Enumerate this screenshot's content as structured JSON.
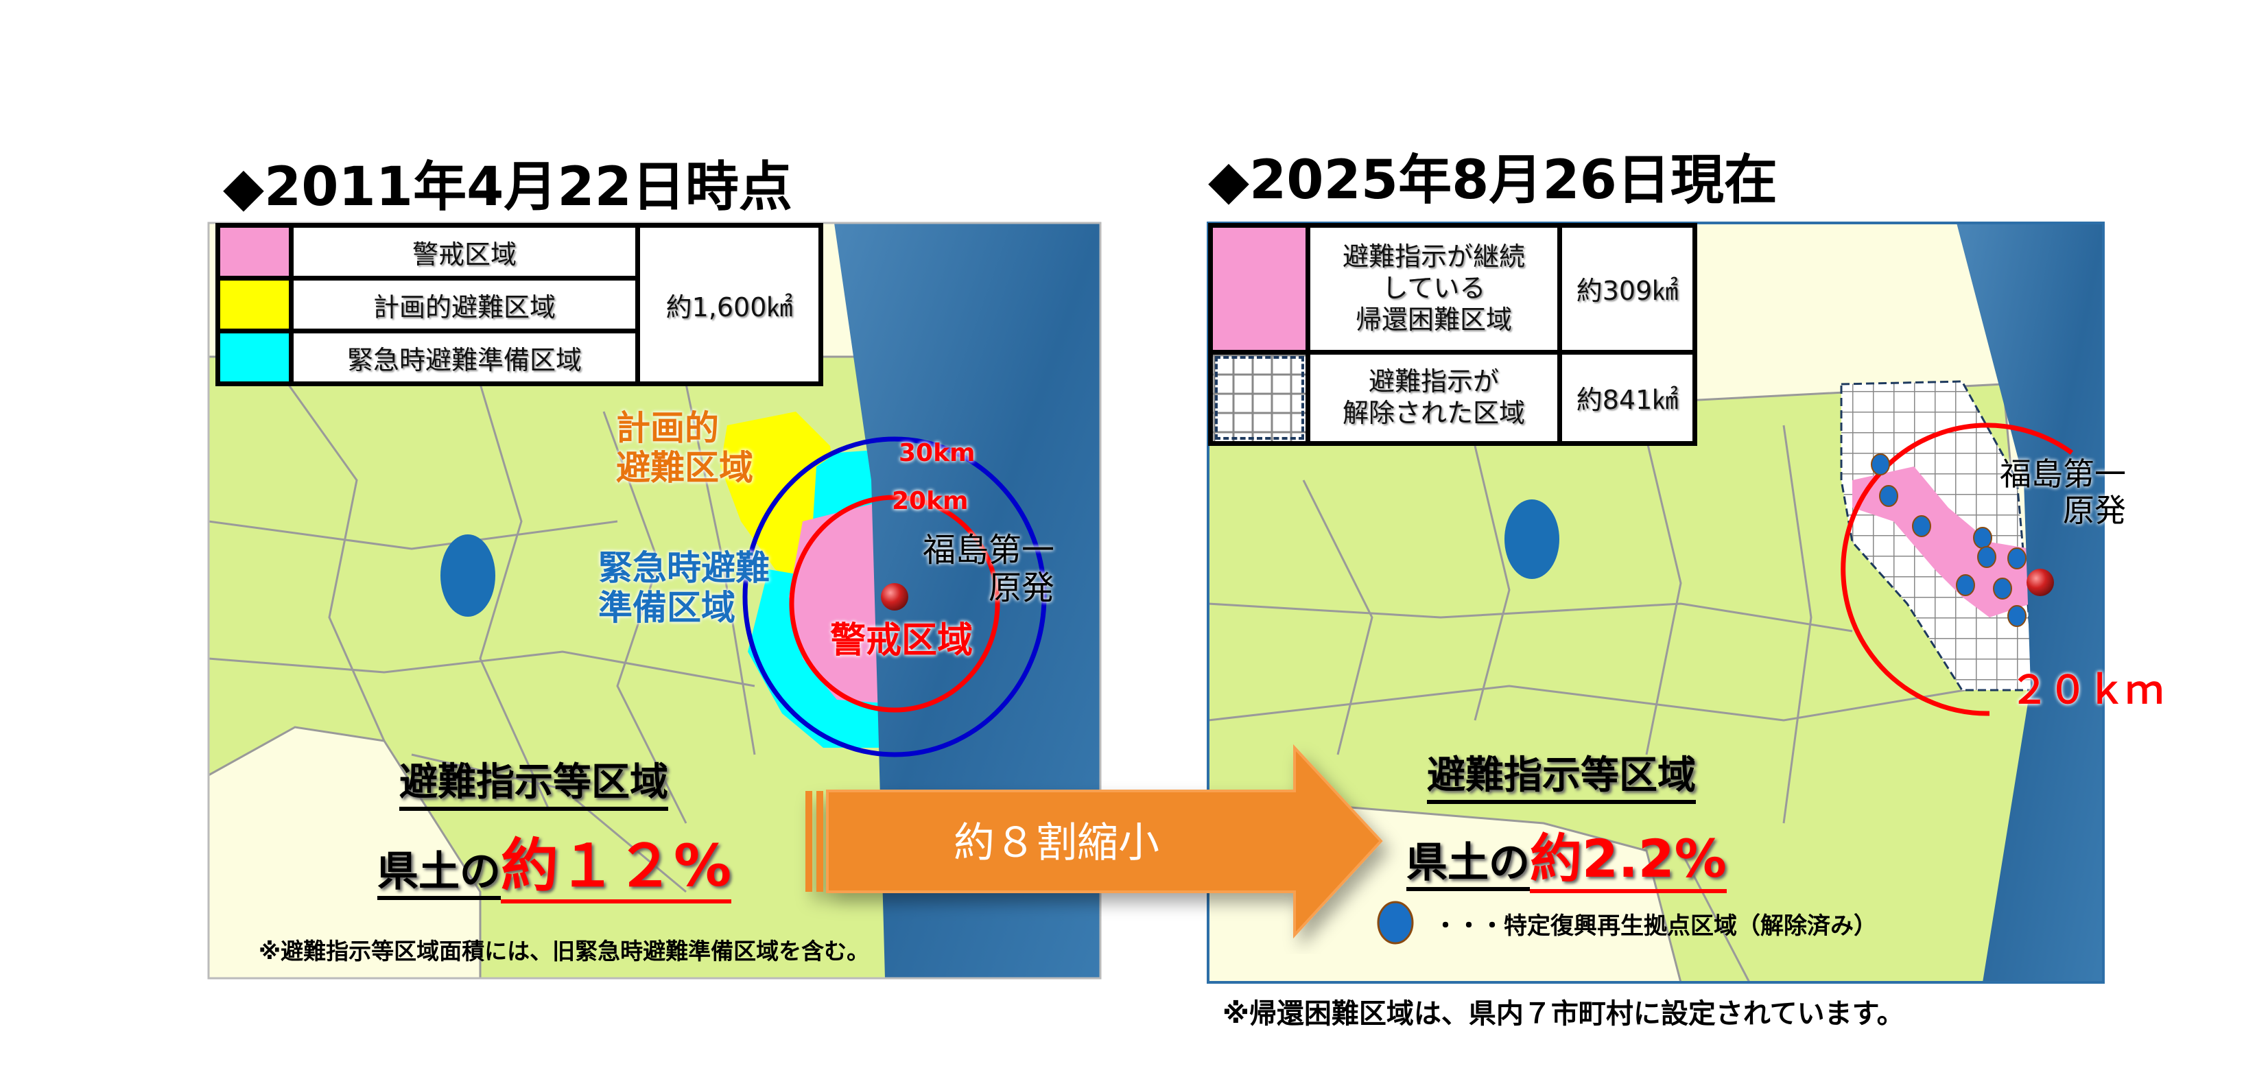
{
  "left": {
    "title": "◆2011年4月22日時点",
    "legend": {
      "rows": [
        {
          "label": "警戒区域",
          "color": "#f799d1"
        },
        {
          "label": "計画的避難区域",
          "color": "#ffff00"
        },
        {
          "label": "緊急時避難準備区域",
          "color": "#00ffff"
        }
      ],
      "area": "約1,600㎢"
    },
    "map_labels": {
      "planned": "計画的\n避難区域",
      "emergency": "緊急時避難\n準備区域",
      "warning": "警戒区域",
      "ring30": "30km",
      "ring20": "20km",
      "plant": "福島第一\n原発"
    },
    "zone_heading": "避難指示等区域",
    "share_prefix": "県土の",
    "share_value": "約１２%",
    "footnote": "※避難指示等区域面積には、旧緊急時避難準備区域を含む。"
  },
  "arrow": {
    "label": "約８割縮小",
    "color": "#f08a2a"
  },
  "right": {
    "title": "◆2025年8月26日現在",
    "legend": {
      "rows": [
        {
          "label": "避難指示が継続\nしている\n帰還困難区域",
          "area": "約309㎢",
          "swatch": "pink"
        },
        {
          "label": "避難指示が\n解除された区域",
          "area": "約841㎢",
          "swatch": "grid"
        }
      ]
    },
    "map_labels": {
      "plant": "福島第一\n原発",
      "ring20": "２０ｋｍ"
    },
    "zone_heading": "避難指示等区域",
    "share_prefix": "県土の",
    "share_value": "約2.2%",
    "dot_legend": "・・・特定復興再生拠点区域（解除済み）",
    "footnote": "※帰還困難区域は、県内７市町村に設定されています。"
  },
  "colors": {
    "land": "#d9f08f",
    "pale": "#fdfde0",
    "ocean": "#2f6fa3",
    "warning": "#f799d1",
    "planned": "#ffff00",
    "emergency": "#00ffff",
    "ring20": "#ff0000",
    "ring30": "#0000cc",
    "hub_dot": "#1a6fc4"
  }
}
